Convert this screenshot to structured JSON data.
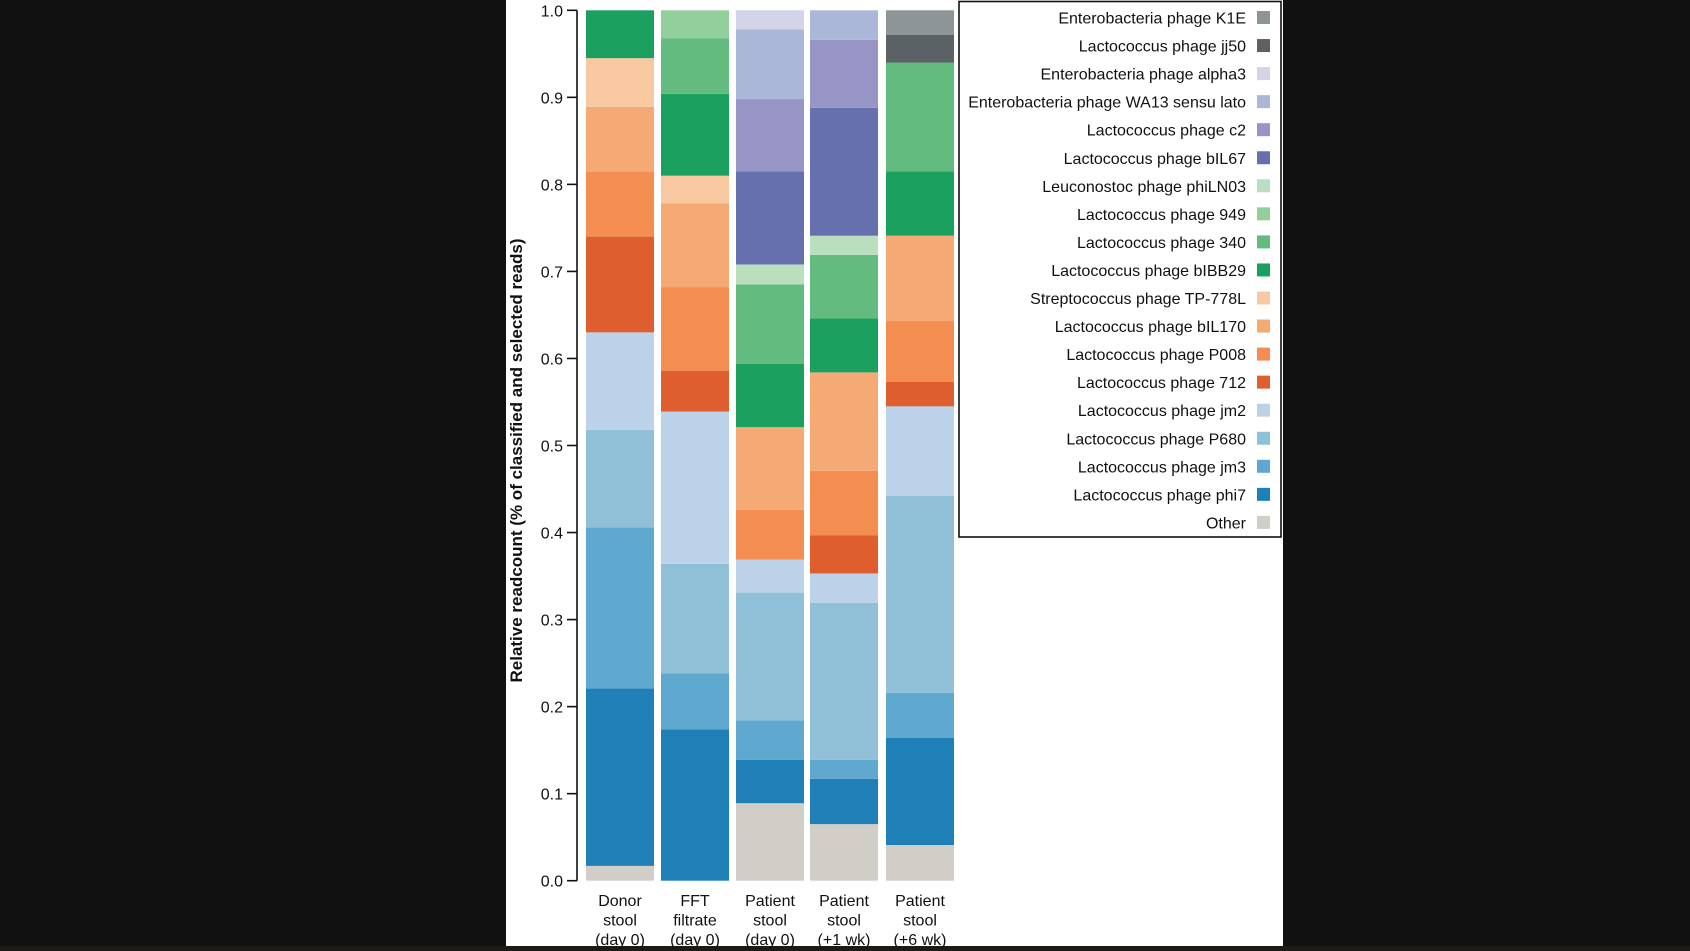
{
  "chart_data": {
    "type": "bar",
    "stacked": true,
    "title": "",
    "xlabel": "",
    "ylabel": "Relative readcount (% of classified and selected reads)",
    "ylim": [
      0,
      1.0
    ],
    "yticks": [
      "0.0",
      "0.1",
      "0.2",
      "0.3",
      "0.4",
      "0.5",
      "0.6",
      "0.7",
      "0.8",
      "0.9",
      "1.0"
    ],
    "grid": false,
    "legend_position": "right",
    "categories": [
      [
        "Donor",
        "stool",
        "(day 0)"
      ],
      [
        "FFT",
        "filtrate",
        "(day 0)"
      ],
      [
        "Patient",
        "stool",
        "(day 0)"
      ],
      [
        "Patient",
        "stool",
        "(+1 wk)"
      ],
      [
        "Patient",
        "stool",
        "(+6 wk)"
      ]
    ],
    "series": [
      {
        "name": "Other",
        "color": "#d1cec7",
        "values": [
          0.017,
          0.0,
          0.089,
          0.065,
          0.041
        ]
      },
      {
        "name": "Lactococcus phage phi7",
        "color": "#1f80b8",
        "values": [
          0.204,
          0.174,
          0.05,
          0.052,
          0.123
        ]
      },
      {
        "name": "Lactococcus phage jm3",
        "color": "#5ea7cf",
        "values": [
          0.185,
          0.064,
          0.045,
          0.022,
          0.052
        ]
      },
      {
        "name": "Lactococcus phage P680",
        "color": "#90c0d7",
        "values": [
          0.112,
          0.126,
          0.147,
          0.18,
          0.226
        ]
      },
      {
        "name": "Lactococcus phage jm2",
        "color": "#bbd2e8",
        "values": [
          0.112,
          0.175,
          0.038,
          0.034,
          0.103
        ]
      },
      {
        "name": "Lactococcus phage 712",
        "color": "#de5e30",
        "values": [
          0.11,
          0.047,
          0.0,
          0.044,
          0.028
        ]
      },
      {
        "name": "Lactococcus phage P008",
        "color": "#f38e50",
        "values": [
          0.075,
          0.096,
          0.057,
          0.074,
          0.07
        ]
      },
      {
        "name": "Lactococcus phage bIL170",
        "color": "#f5a975",
        "values": [
          0.074,
          0.096,
          0.095,
          0.113,
          0.098
        ]
      },
      {
        "name": "Streptococcus phage TP-778L",
        "color": "#f8c9a0",
        "values": [
          0.056,
          0.032,
          0.0,
          0.0,
          0.0
        ]
      },
      {
        "name": "Lactococcus phage bIBB29",
        "color": "#1ba05f",
        "values": [
          0.055,
          0.094,
          0.073,
          0.062,
          0.074
        ]
      },
      {
        "name": "Lactococcus phage 340",
        "color": "#63bb80",
        "values": [
          0.0,
          0.064,
          0.091,
          0.073,
          0.125
        ]
      },
      {
        "name": "Lactococcus phage 949",
        "color": "#92cf9d",
        "values": [
          0.0,
          0.032,
          0.0,
          0.0,
          0.0
        ]
      },
      {
        "name": "Leuconostoc phage phiLN03",
        "color": "#badfbe",
        "values": [
          0.0,
          0.0,
          0.023,
          0.022,
          0.0
        ]
      },
      {
        "name": "Lactococcus phage bIL67",
        "color": "#6670ae",
        "values": [
          0.0,
          0.0,
          0.107,
          0.147,
          0.0
        ]
      },
      {
        "name": "Lactococcus phage c2",
        "color": "#9695c5",
        "values": [
          0.0,
          0.0,
          0.083,
          0.078,
          0.0
        ]
      },
      {
        "name": "Enterobacteria phage WA13 sensu lato",
        "color": "#aab7d9",
        "values": [
          0.0,
          0.0,
          0.08,
          0.034,
          0.0
        ]
      },
      {
        "name": "Enterobacteria phage alpha3",
        "color": "#d4d4e8",
        "values": [
          0.0,
          0.0,
          0.022,
          0.0,
          0.0
        ]
      },
      {
        "name": "Lactococcus phage jj50",
        "color": "#5b6164",
        "values": [
          0.0,
          0.0,
          0.0,
          0.0,
          0.032
        ]
      },
      {
        "name": "Enterobacteria phage K1E",
        "color": "#8e9596",
        "values": [
          0.0,
          0.0,
          0.0,
          0.0,
          0.028
        ]
      }
    ],
    "legend_order": [
      "Enterobacteria phage K1E",
      "Lactococcus phage jj50",
      "Enterobacteria phage alpha3",
      "Enterobacteria phage WA13 sensu lato",
      "Lactococcus phage c2",
      "Lactococcus phage bIL67",
      "Leuconostoc phage phiLN03",
      "Lactococcus phage 949",
      "Lactococcus phage 340",
      "Lactococcus phage bIBB29",
      "Streptococcus phage TP-778L",
      "Lactococcus phage bIL170",
      "Lactococcus phage P008",
      "Lactococcus phage 712",
      "Lactococcus phage jm2",
      "Lactococcus phage P680",
      "Lactococcus phage jm3",
      "Lactococcus phage phi7",
      "Other"
    ]
  }
}
